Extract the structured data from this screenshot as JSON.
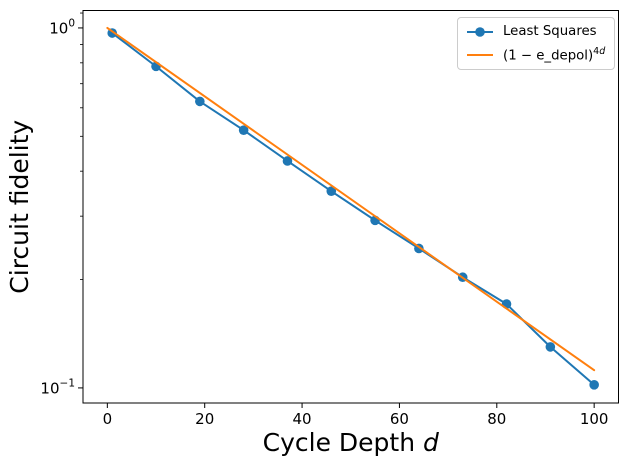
{
  "figure": {
    "background": "#ffffff"
  },
  "chart_data": {
    "type": "line",
    "title": "",
    "xlabel": "Cycle Depth d",
    "xlabel_main": "Cycle Depth ",
    "xlabel_italic": "d",
    "ylabel": "Circuit fidelity",
    "xscale": "linear",
    "yscale": "log",
    "xlim": [
      -5,
      105
    ],
    "ylim": [
      0.0908,
      1.118
    ],
    "x_ticks": [
      0,
      20,
      40,
      60,
      80,
      100
    ],
    "y_major_ticks": [
      {
        "value": 1.0,
        "base": "10",
        "exp": "0"
      },
      {
        "value": 0.1,
        "base": "10",
        "exp": "−1"
      }
    ],
    "y_minor_ticks": [
      1.1,
      0.9,
      0.8,
      0.7,
      0.6,
      0.5,
      0.4,
      0.3,
      0.2
    ],
    "grid": false,
    "legend_position": "upper right",
    "series": [
      {
        "name": "Least Squares",
        "color": "#1f77b4",
        "marker": "circle",
        "marker_radius": 4.8,
        "line_width": 2,
        "x": [
          1,
          10,
          19,
          28,
          37,
          46,
          55,
          64,
          73,
          82,
          91,
          100
        ],
        "y": [
          0.968,
          0.782,
          0.625,
          0.52,
          0.427,
          0.352,
          0.292,
          0.244,
          0.203,
          0.171,
          0.13,
          0.102
        ]
      },
      {
        "name": "(1 − e_depol)^4d",
        "name_base": "(1 − e_depol)",
        "name_sup_normal": "4",
        "name_sup_italic": "d",
        "color": "#ff7f0e",
        "marker": "none",
        "marker_radius": 0,
        "line_width": 2,
        "x": [
          0,
          100
        ],
        "y": [
          1.0,
          0.112
        ]
      }
    ],
    "colors": {
      "blue": "#1f77b4",
      "orange": "#ff7f0e",
      "spine": "#000000",
      "legend_border": "#cccccc"
    }
  }
}
